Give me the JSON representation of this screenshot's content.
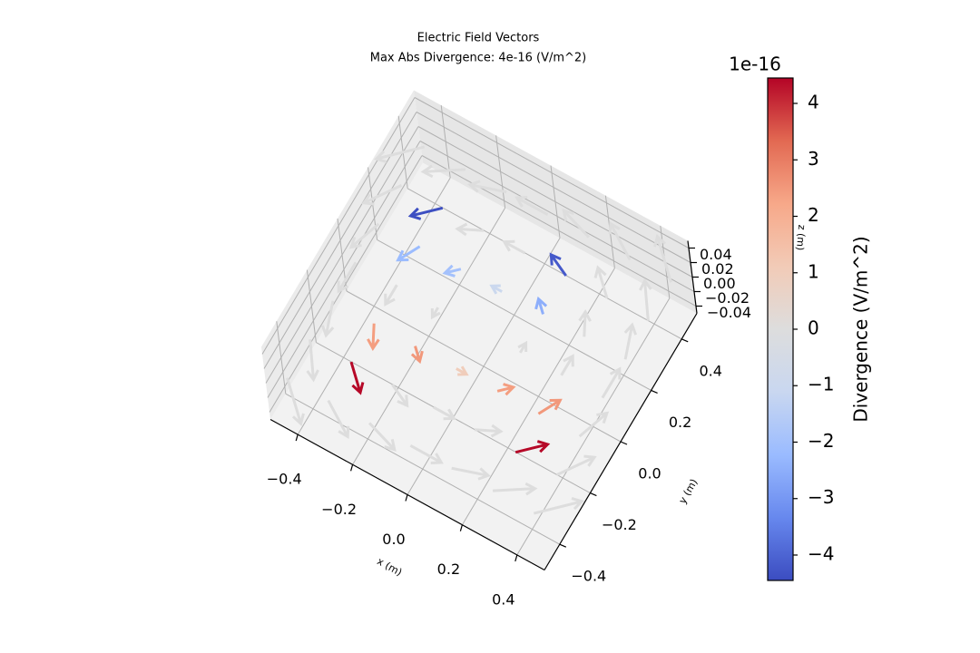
{
  "chart_data": {
    "type": "quiver3d",
    "title": "Electric Field Vectors",
    "subtitle": "Max Abs Divergence: 4e-16 (V/m^2)",
    "x_label": "x (m)",
    "y_label": "y (m)",
    "z_label": "z (m)",
    "xlim": [
      -0.5,
      0.5
    ],
    "ylim": [
      -0.5,
      0.5
    ],
    "zlim": [
      -0.05,
      0.05
    ],
    "xticks": [
      {
        "value": -0.4,
        "label": "−0.4"
      },
      {
        "value": -0.2,
        "label": "−0.2"
      },
      {
        "value": 0,
        "label": "0.0"
      },
      {
        "value": 0.2,
        "label": "0.2"
      },
      {
        "value": 0.4,
        "label": "0.4"
      }
    ],
    "yticks": [
      {
        "value": -0.4,
        "label": "−0.4"
      },
      {
        "value": -0.2,
        "label": "−0.2"
      },
      {
        "value": 0,
        "label": "0.0"
      },
      {
        "value": 0.2,
        "label": "0.2"
      },
      {
        "value": 0.4,
        "label": "0.4"
      }
    ],
    "zticks": [
      {
        "value": -0.04,
        "label": "−0.04"
      },
      {
        "value": -0.02,
        "label": "−0.02"
      },
      {
        "value": 0,
        "label": "0.00"
      },
      {
        "value": 0.02,
        "label": "0.02"
      },
      {
        "value": 0.04,
        "label": "0.04"
      }
    ],
    "x": [
      -0.45,
      -0.3,
      -0.15,
      0,
      0.15,
      0.3,
      0.45
    ],
    "y": [
      -0.45,
      -0.3,
      -0.15,
      0,
      0.15,
      0.3,
      0.45
    ],
    "u": [
      [
        0.45,
        0.45,
        0.45,
        0.45,
        0.45,
        0.45,
        0.45
      ],
      [
        0.3,
        0.3,
        0.3,
        0.3,
        0.3,
        0.3,
        0.3
      ],
      [
        0.15,
        0.15,
        0.15,
        0.15,
        0.15,
        0.15,
        0.15
      ],
      [
        0,
        0,
        0,
        0,
        0,
        0,
        0
      ],
      [
        -0.15,
        -0.15,
        -0.15,
        -0.15,
        -0.15,
        -0.15,
        -0.15
      ],
      [
        -0.3,
        -0.3,
        -0.3,
        -0.3,
        -0.3,
        -0.3,
        -0.3
      ],
      [
        -0.45,
        -0.45,
        -0.45,
        -0.45,
        -0.45,
        -0.45,
        -0.45
      ]
    ],
    "v": [
      [
        -0.45,
        -0.3,
        -0.15,
        0,
        0.15,
        0.3,
        0.45
      ],
      [
        -0.45,
        -0.3,
        -0.15,
        0,
        0.15,
        0.3,
        0.45
      ],
      [
        -0.45,
        -0.3,
        -0.15,
        0,
        0.15,
        0.3,
        0.45
      ],
      [
        -0.45,
        -0.3,
        -0.15,
        0,
        0.15,
        0.3,
        0.45
      ],
      [
        -0.45,
        -0.3,
        -0.15,
        0,
        0.15,
        0.3,
        0.45
      ],
      [
        -0.45,
        -0.3,
        -0.15,
        0,
        0.15,
        0.3,
        0.45
      ],
      [
        -0.45,
        -0.3,
        -0.15,
        0,
        0.15,
        0.3,
        0.45
      ]
    ],
    "divergence": [
      [
        0,
        0,
        0,
        0,
        0,
        0,
        0
      ],
      [
        0,
        4.4,
        0,
        0,
        0,
        4.4,
        0
      ],
      [
        0,
        2.4,
        2.5,
        1,
        2.4,
        2.5,
        0
      ],
      [
        0,
        0,
        0,
        0,
        0,
        0,
        0
      ],
      [
        0,
        -2.2,
        -2,
        -1,
        -2.5,
        0,
        0
      ],
      [
        0,
        -4.4,
        0,
        0,
        -4.2,
        0,
        0
      ],
      [
        0,
        0,
        0,
        0,
        0,
        0,
        0
      ]
    ],
    "colorbar": {
      "label": "Divergence (V/m^2)",
      "offset_label": "1e-16",
      "clim": [
        -4.45,
        4.45
      ],
      "ticks": [
        {
          "value": -4,
          "label": "−4"
        },
        {
          "value": -3,
          "label": "−3"
        },
        {
          "value": -2,
          "label": "−2"
        },
        {
          "value": -1,
          "label": "−1"
        },
        0,
        1,
        2,
        3,
        4
      ],
      "colormap": [
        "#3b4cc0",
        "#6788ee",
        "#9abbff",
        "#c9d7f0",
        "#dddddd",
        "#f2cbb7",
        "#f7a889",
        "#e26952",
        "#b40426"
      ]
    }
  }
}
